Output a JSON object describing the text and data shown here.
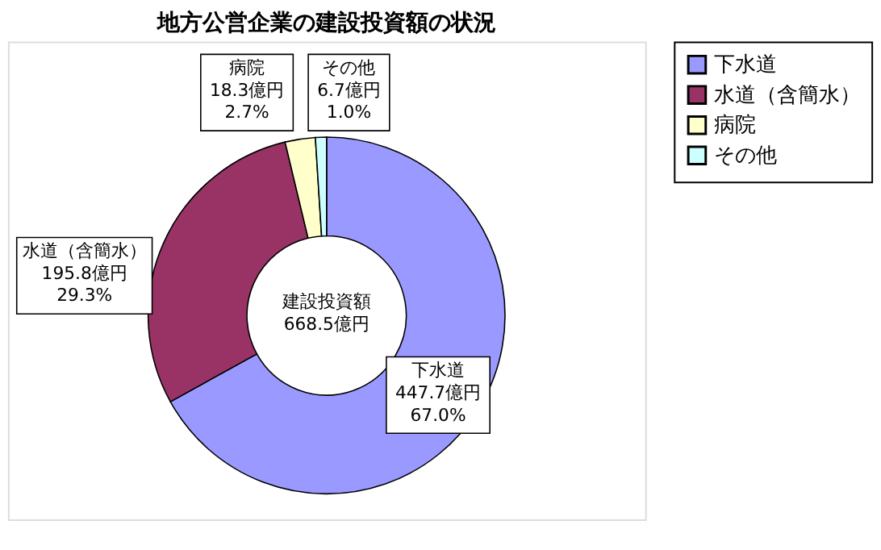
{
  "chart_data": {
    "type": "donut",
    "title": "地方公営企業の建設投資額の状況",
    "categories": [
      "下水道",
      "水道（含簡水）",
      "病院",
      "その他"
    ],
    "values": [
      447.7,
      195.8,
      18.3,
      6.7
    ],
    "colors": [
      "#9999ff",
      "#993366",
      "#ffffcc",
      "#ccffff"
    ],
    "value_labels": [
      "下水道\n447.7億円\n67.0%",
      "水道（含簡水）\n195.8億円\n29.3%",
      "病院\n18.3億円\n2.7%",
      "その他\n6.7億円\n1.0%"
    ],
    "annotations": [
      "建設投資額\n668.5億円"
    ],
    "legend": "right"
  }
}
